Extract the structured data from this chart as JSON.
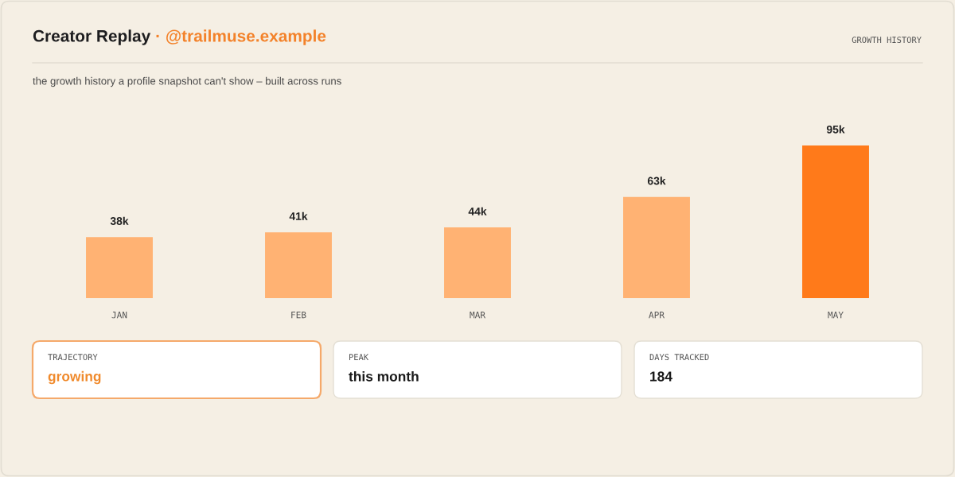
{
  "chart_data": {
    "type": "bar",
    "title": "Creator Replay · @trailmuse.example",
    "subtitle": "the growth history a profile snapshot can't show – built across runs",
    "categories": [
      "JAN",
      "FEB",
      "MAR",
      "APR",
      "MAY"
    ],
    "values": [
      38,
      41,
      44,
      63,
      95
    ],
    "colors": [
      "#ffb273",
      "#ffb273",
      "#ffb273",
      "#ffb273",
      "#ff7a1a"
    ],
    "value_labels": [
      "38k",
      "41k",
      "44k",
      "63k",
      "95k"
    ],
    "annotations": [
      "GROWTH HISTORY",
      "TRAJECTORY",
      "growing",
      "PEAK",
      "this month",
      "DAYS TRACKED",
      "184"
    ]
  }
}
